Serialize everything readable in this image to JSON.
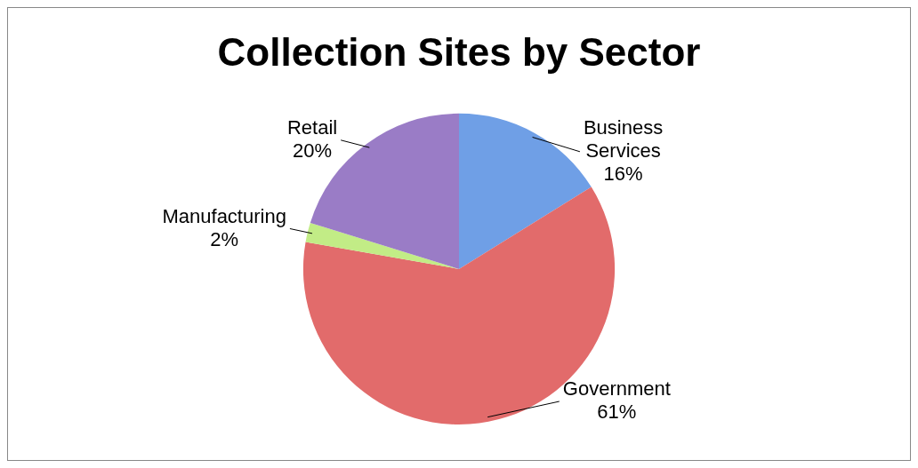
{
  "chart_data": {
    "type": "pie",
    "title": "Collection Sites by Sector",
    "categories": [
      "Business Services",
      "Government",
      "Manufacturing",
      "Retail"
    ],
    "values": [
      16,
      61,
      2,
      20
    ],
    "value_labels": [
      "16%",
      "61%",
      "2%",
      "20%"
    ],
    "colors": [
      "#6f9fe6",
      "#e26b6b",
      "#c2ec86",
      "#9a7cc6"
    ],
    "legend": false
  }
}
